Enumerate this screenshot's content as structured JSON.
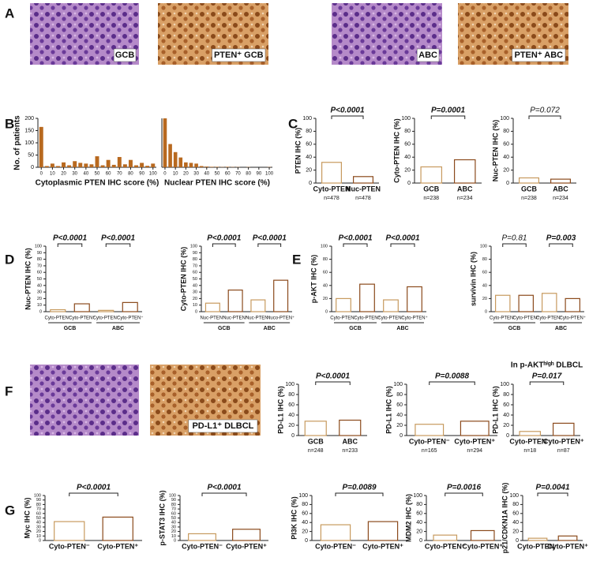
{
  "panel_labels": [
    "A",
    "B",
    "C",
    "D",
    "E",
    "F",
    "G"
  ],
  "images": [
    {
      "label": "GCB",
      "stain": "he"
    },
    {
      "label": "PTEN⁺ GCB",
      "stain": "ihc"
    },
    {
      "label": "ABC",
      "stain": "he"
    },
    {
      "label": "PTEN⁺ ABC",
      "stain": "ihc"
    },
    {
      "label": null,
      "stain": "he"
    },
    {
      "label": "PD-L1⁺ DLBCL",
      "stain": "ihc"
    }
  ],
  "histograms": [
    {
      "xlabel": "Cytoplasmic PTEN IHC score (%)",
      "ylabel": "No. of patients",
      "color": "#b8691f",
      "x": [
        0,
        5,
        10,
        15,
        20,
        25,
        30,
        35,
        40,
        45,
        50,
        55,
        60,
        65,
        70,
        75,
        80,
        85,
        90,
        95,
        100
      ],
      "values": [
        165,
        5,
        15,
        5,
        20,
        8,
        25,
        18,
        15,
        12,
        45,
        8,
        30,
        10,
        42,
        12,
        30,
        8,
        18,
        6,
        15
      ],
      "xlim": [
        -3,
        103
      ],
      "xticks": [
        0,
        10,
        20,
        30,
        40,
        50,
        60,
        70,
        80,
        90,
        100
      ],
      "ylim": [
        0,
        200
      ],
      "yticks": [
        0,
        50,
        100,
        150,
        200
      ]
    },
    {
      "xlabel": "Nuclear PTEN IHC score (%)",
      "color": "#b8691f",
      "x": [
        0,
        5,
        10,
        15,
        20,
        25,
        30,
        35,
        40,
        45,
        50,
        55,
        60,
        65,
        70,
        75,
        80,
        85,
        90,
        95,
        100
      ],
      "values": [
        200,
        95,
        62,
        40,
        20,
        18,
        15,
        5,
        3,
        2,
        2,
        1,
        2,
        1,
        1,
        0,
        1,
        0,
        0,
        0,
        1
      ],
      "xlim": [
        -3,
        103
      ],
      "xticks": [
        0,
        10,
        20,
        30,
        40,
        50,
        60,
        70,
        80,
        90,
        100
      ],
      "ylim": [
        0,
        200
      ]
    }
  ],
  "plots": [
    {
      "ylabel": "PTEN IHC (%)",
      "pvalues": [
        {
          "text": "P<0.0001",
          "bold": true
        }
      ],
      "categories": [
        "Cyto-PTEN",
        "Nuc-PTEN"
      ],
      "ns": [
        "n=478",
        "n=478"
      ],
      "values": [
        32,
        10
      ],
      "ylim": [
        0,
        100
      ],
      "yticks": [
        0,
        20,
        40,
        60,
        80,
        100
      ]
    },
    {
      "ylabel": "Cyto-PTEN IHC (%)",
      "pvalues": [
        {
          "text": "P=0.0001",
          "bold": true
        }
      ],
      "categories": [
        "GCB",
        "ABC"
      ],
      "ns": [
        "n=238",
        "n=234"
      ],
      "values": [
        25,
        36
      ],
      "ylim": [
        0,
        100
      ],
      "yticks": [
        0,
        20,
        40,
        60,
        80,
        100
      ]
    },
    {
      "ylabel": "Nuc-PTEN IHC (%)",
      "pvalues": [
        {
          "text": "P=0.072",
          "bold": false
        }
      ],
      "categories": [
        "GCB",
        "ABC"
      ],
      "ns": [
        "n=238",
        "n=234"
      ],
      "values": [
        8,
        6
      ],
      "ylim": [
        0,
        100
      ],
      "yticks": [
        0,
        20,
        40,
        60,
        80,
        100
      ]
    },
    {
      "ylabel": "Nuc-PTEN IHC (%)",
      "pvalues": [
        {
          "text": "P<0.0001",
          "bold": true
        },
        {
          "text": "P<0.0001",
          "bold": true
        }
      ],
      "categories": [
        "Cyto-PTEN⁻",
        "Cyto-PTEN⁺",
        "Cyto-PTEN⁻",
        "Cyto-PTEN⁺"
      ],
      "groups": [
        "GCB",
        "ABC"
      ],
      "values": [
        3,
        12,
        2,
        14
      ],
      "ylim": [
        0,
        100
      ],
      "yticks": [
        0,
        10,
        20,
        30,
        40,
        50,
        60,
        70,
        80,
        90,
        100
      ]
    },
    {
      "ylabel": "Cyto-PTEN IHC (%)",
      "pvalues": [
        {
          "text": "P<0.0001",
          "bold": true
        },
        {
          "text": "P<0.0001",
          "bold": true
        }
      ],
      "categories": [
        "Nuc-PTEN⁻",
        "Nuc-PTEN⁺",
        "Nuc-PTEN⁻",
        "Nuco-PTEN⁺"
      ],
      "groups": [
        "GCB",
        "ABC"
      ],
      "values": [
        13,
        33,
        18,
        48
      ],
      "ylim": [
        0,
        100
      ],
      "yticks": [
        0,
        10,
        20,
        30,
        40,
        50,
        60,
        70,
        80,
        90,
        100
      ]
    },
    {
      "ylabel": "p-AKT IHC (%)",
      "pvalues": [
        {
          "text": "P<0.0001",
          "bold": true
        },
        {
          "text": "P<0.0001",
          "bold": true
        }
      ],
      "categories": [
        "Cyto-PTEN⁻",
        "Cyto-PTEN⁺",
        "Cyto-PTEN⁻",
        "Cyto-PTEN⁺"
      ],
      "groups": [
        "GCB",
        "ABC"
      ],
      "values": [
        20,
        42,
        18,
        38
      ],
      "ylim": [
        0,
        100
      ],
      "yticks": [
        0,
        20,
        40,
        60,
        80,
        100
      ]
    },
    {
      "ylabel": "survivin IHC (%)",
      "pvalues": [
        {
          "text": "P=0.81",
          "bold": false
        },
        {
          "text": "P=0.003",
          "bold": true
        }
      ],
      "categories": [
        "Cyto-PTEN⁻",
        "Cyto-PTEN⁺",
        "Cyto-PTEN⁻",
        "Cyto-PTEN⁺"
      ],
      "groups": [
        "GCB",
        "ABC"
      ],
      "values": [
        25,
        25,
        28,
        20
      ],
      "ylim": [
        0,
        100
      ],
      "yticks": [
        0,
        20,
        40,
        60,
        80,
        100
      ]
    },
    {
      "ylabel": "PD-L1 IHC (%)",
      "pvalues": [
        {
          "text": "P<0.0001",
          "bold": true
        }
      ],
      "categories": [
        "GCB",
        "ABC"
      ],
      "ns": [
        "n=248",
        "n=233"
      ],
      "values": [
        28,
        30
      ],
      "ylim": [
        0,
        100
      ],
      "yticks": [
        0,
        20,
        40,
        60,
        80,
        100
      ]
    },
    {
      "ylabel": "PD-L1 IHC (%)",
      "pvalues": [
        {
          "text": "P=0.0088",
          "bold": true
        }
      ],
      "categories": [
        "Cyto-PTEN⁻",
        "Cyto-PTEN⁺"
      ],
      "ns": [
        "n=165",
        "n=294"
      ],
      "values": [
        22,
        28
      ],
      "ylim": [
        0,
        100
      ],
      "yticks": [
        0,
        20,
        40,
        60,
        80,
        100
      ]
    },
    {
      "title": "In p-AKTʰⁱᵍʰ DLBCL",
      "ylabel": "PD-L1 IHC (%)",
      "pvalues": [
        {
          "text": "P=0.017",
          "bold": true
        }
      ],
      "categories": [
        "Cyto-PTEN⁻",
        "Cyto-PTEN⁺"
      ],
      "ns": [
        "n=18",
        "n=87"
      ],
      "values": [
        8,
        24
      ],
      "ylim": [
        0,
        100
      ],
      "yticks": [
        0,
        20,
        40,
        60,
        80,
        100
      ]
    },
    {
      "ylabel": "Myc IHC (%)",
      "pvalues": [
        {
          "text": "P<0.0001",
          "bold": true
        }
      ],
      "categories": [
        "Cyto-PTEN⁻",
        "Cyto-PTEN⁺"
      ],
      "values": [
        42,
        52
      ],
      "ylim": [
        0,
        100
      ],
      "yticks": [
        0,
        10,
        20,
        30,
        40,
        50,
        60,
        70,
        80,
        90,
        100
      ]
    },
    {
      "ylabel": "p-STAT3 IHC (%)",
      "pvalues": [
        {
          "text": "P<0.0001",
          "bold": true
        }
      ],
      "categories": [
        "Cyto-PTEN⁻",
        "Cyto-PTEN⁺"
      ],
      "values": [
        15,
        25
      ],
      "ylim": [
        0,
        100
      ],
      "yticks": [
        0,
        10,
        20,
        30,
        40,
        50,
        60,
        70,
        80,
        90,
        100
      ]
    },
    {
      "ylabel": "PI3K IHC (%)",
      "pvalues": [
        {
          "text": "P=0.0089",
          "bold": true
        }
      ],
      "categories": [
        "Cyto-PTEN⁻",
        "Cyto-PTEN⁺"
      ],
      "values": [
        35,
        42
      ],
      "ylim": [
        0,
        100
      ],
      "yticks": [
        0,
        20,
        40,
        60,
        80,
        100
      ]
    },
    {
      "ylabel": "MDM2 IHC (%)",
      "pvalues": [
        {
          "text": "P=0.0016",
          "bold": true
        }
      ],
      "categories": [
        "Cyto-PTEN⁻",
        "Cyto-PTEN⁺"
      ],
      "values": [
        12,
        22
      ],
      "ylim": [
        0,
        100
      ],
      "yticks": [
        0,
        20,
        40,
        60,
        80,
        100
      ]
    },
    {
      "ylabel": "p21/CDKN1A IHC (%)",
      "pvalues": [
        {
          "text": "P=0.0041",
          "bold": true
        }
      ],
      "categories": [
        "Cyto-PTEN⁻",
        "Cyto-PTEN⁺"
      ],
      "values": [
        5,
        10
      ],
      "ylim": [
        0,
        100
      ],
      "yticks": [
        0,
        20,
        40,
        60,
        80,
        100
      ]
    }
  ]
}
